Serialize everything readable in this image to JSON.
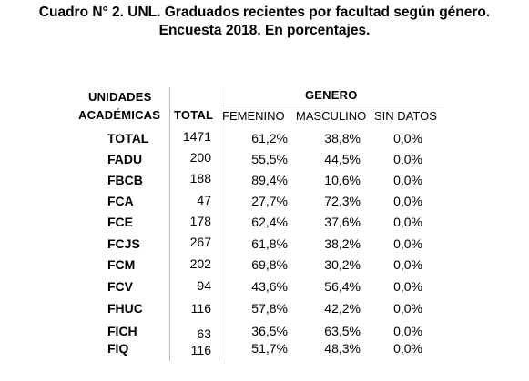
{
  "title": {
    "line1": "Cuadro N° 2. UNL. Graduados recientes por facultad según género.",
    "line2": "Encuesta 2018. En porcentajes."
  },
  "table": {
    "header_units_line1": "UNIDADES",
    "header_units_line2": "ACADÉMICAS",
    "header_total": "TOTAL",
    "header_genero": "GENERO",
    "header_femenino": "FEMENINO",
    "header_masculino": "MASCULINO",
    "header_sin_datos": "SIN DATOS",
    "rows": [
      {
        "unidad": "TOTAL",
        "total": "1471",
        "femenino": "61,2%",
        "masculino": "38,8%",
        "sin_datos": "0,0%"
      },
      {
        "unidad": "FADU",
        "total": "200",
        "femenino": "55,5%",
        "masculino": "44,5%",
        "sin_datos": "0,0%"
      },
      {
        "unidad": "FBCB",
        "total": "188",
        "femenino": "89,4%",
        "masculino": "10,6%",
        "sin_datos": "0,0%"
      },
      {
        "unidad": "FCA",
        "total": "47",
        "femenino": "27,7%",
        "masculino": "72,3%",
        "sin_datos": "0,0%"
      },
      {
        "unidad": "FCE",
        "total": "178",
        "femenino": "62,4%",
        "masculino": "37,6%",
        "sin_datos": "0,0%"
      },
      {
        "unidad": "FCJS",
        "total": "267",
        "femenino": "61,8%",
        "masculino": "38,2%",
        "sin_datos": "0,0%"
      },
      {
        "unidad": "FCM",
        "total": "202",
        "femenino": "69,8%",
        "masculino": "30,2%",
        "sin_datos": "0,0%"
      },
      {
        "unidad": "FCV",
        "total": "94",
        "femenino": "43,6%",
        "masculino": "56,4%",
        "sin_datos": "0,0%"
      },
      {
        "unidad": "FHUC",
        "total": "116",
        "femenino": "57,8%",
        "masculino": "42,2%",
        "sin_datos": "0,0%"
      },
      {
        "unidad": "FICH",
        "total": "63",
        "femenino": "36,5%",
        "masculino": "63,5%",
        "sin_datos": "0,0%"
      },
      {
        "unidad": "FIQ",
        "total": "116",
        "femenino": "51,7%",
        "masculino": "48,3%",
        "sin_datos": "0,0%"
      }
    ]
  },
  "colors": {
    "grid": "#bcbcbc",
    "text": "#000000"
  }
}
